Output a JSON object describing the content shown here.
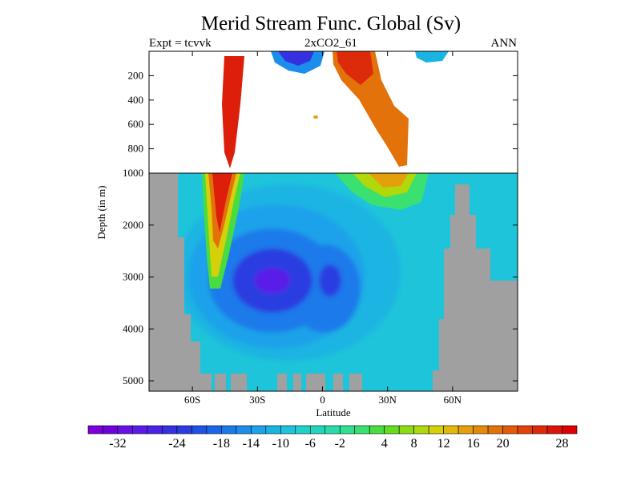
{
  "chart_data": {
    "type": "heatmap",
    "title": "Merid Stream Func. Global (Sv)",
    "left_label": "Expt = tcvvk",
    "center_label": "2xCO2_61",
    "right_label": "ANN",
    "xlabel": "Latitude",
    "ylabel": "Depth (in m)",
    "x_range": [
      -80,
      90
    ],
    "x_ticks": [
      -60,
      -30,
      0,
      30,
      60
    ],
    "x_tick_labels": [
      "60S",
      "30S",
      "0",
      "30N",
      "60N"
    ],
    "y_upper_range": [
      0,
      1000
    ],
    "y_upper_ticks": [
      200,
      400,
      600,
      800,
      1000
    ],
    "y_upper_tick_labels": [
      "200",
      "400",
      "600",
      "800",
      "1000"
    ],
    "y_lower_range": [
      1000,
      5200
    ],
    "y_lower_ticks": [
      2000,
      3000,
      4000,
      5000
    ],
    "y_lower_tick_labels": [
      "2000",
      "3000",
      "4000",
      "5000"
    ],
    "colorbar_levels": [
      -36,
      -34,
      -32,
      -30,
      -28,
      -26,
      -24,
      -22,
      -20,
      -18,
      -16,
      -14,
      -12,
      -10,
      -8,
      -6,
      -4,
      -2,
      0,
      2,
      4,
      6,
      8,
      10,
      12,
      14,
      16,
      18,
      20,
      22,
      24,
      26,
      28,
      30
    ],
    "colorbar_colors": [
      "#7c00db",
      "#7000dc",
      "#6510e6",
      "#5a1ae8",
      "#4a24e6",
      "#3530e0",
      "#2a3ce0",
      "#1e52e6",
      "#1a66ea",
      "#1a7aea",
      "#1a8eea",
      "#1aa2ea",
      "#1ab4e2",
      "#1ec4da",
      "#1ed2cc",
      "#20d6bc",
      "#28dca8",
      "#2ee090",
      "#3ae070",
      "#48dc40",
      "#66dc20",
      "#8adc10",
      "#b0d80a",
      "#d4d00a",
      "#e2b80a",
      "#e4a00a",
      "#e48a0a",
      "#e4720a",
      "#e45a0a",
      "#e4400a",
      "#e0280a",
      "#dc140a",
      "#dc0000"
    ],
    "colorbar_tick_labels": [
      "-32",
      "-24",
      "-18",
      "-14",
      "-10",
      "-6",
      "-2",
      "4",
      "8",
      "12",
      "16",
      "20",
      "28"
    ],
    "masked_color": "#a0a0a0"
  }
}
